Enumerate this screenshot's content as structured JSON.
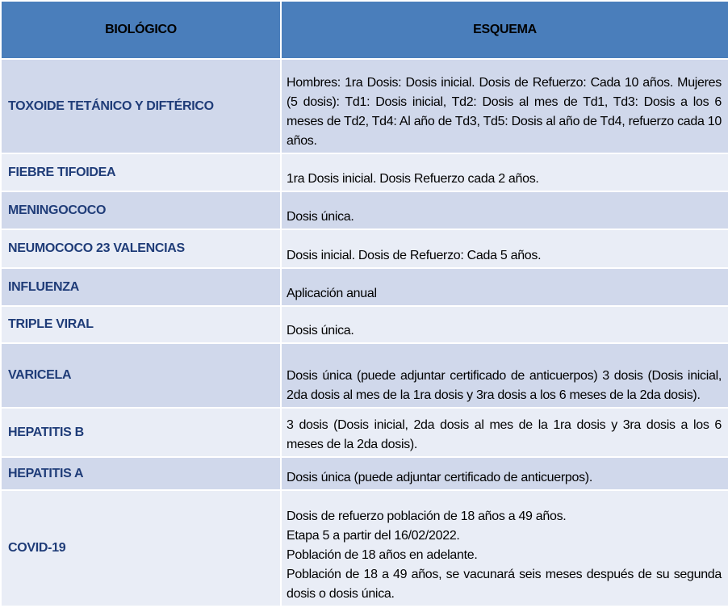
{
  "table": {
    "header": [
      "BIOLÓGICO",
      "ESQUEMA"
    ],
    "rows": [
      {
        "biologico": "TOXOIDE TETÁNICO Y DIFTÉRICO",
        "esquema": [
          "Hombres: 1ra Dosis: Dosis inicial. Dosis de Refuerzo: Cada 10 años. Mujeres (5 dosis): Td1: Dosis inicial, Td2: Dosis al mes de Td1, Td3: Dosis a los 6 meses de Td2, Td4: Al año de Td3, Td5: Dosis al año de Td4, refuerzo cada 10 años."
        ]
      },
      {
        "biologico": "FIEBRE TIFOIDEA",
        "esquema": [
          "1ra Dosis inicial. Dosis Refuerzo cada 2 años."
        ]
      },
      {
        "biologico": "MENINGOCOCO",
        "esquema": [
          "Dosis única."
        ]
      },
      {
        "biologico": "NEUMOCOCO 23 VALENCIAS",
        "esquema": [
          "Dosis inicial. Dosis de Refuerzo: Cada 5 años."
        ]
      },
      {
        "biologico": "INFLUENZA",
        "esquema": [
          "Aplicación anual"
        ]
      },
      {
        "biologico": "TRIPLE VIRAL",
        "esquema": [
          "Dosis única."
        ]
      },
      {
        "biologico": "VARICELA",
        "esquema": [
          "Dosis única (puede adjuntar certificado de anticuerpos) 3 dosis (Dosis inicial, 2da dosis al mes de la 1ra dosis y 3ra dosis a los 6 meses de la 2da dosis)."
        ]
      },
      {
        "biologico": "HEPATITIS B",
        "esquema": [
          "3 dosis (Dosis inicial, 2da dosis al mes de la 1ra dosis y 3ra dosis a los 6 meses de la 2da dosis)."
        ]
      },
      {
        "biologico": "HEPATITIS A",
        "esquema": [
          "Dosis única (puede adjuntar certificado de anticuerpos)."
        ]
      },
      {
        "biologico": "COVID-19",
        "esquema": [
          "Dosis de refuerzo población de 18 años a 49 años.",
          "Etapa 5 a partir del 16/02/2022.",
          "Población de 18 años en adelante.",
          "Población de 18 a 49 años, se vacunará seis meses después de su segunda dosis o dosis única."
        ]
      }
    ]
  }
}
